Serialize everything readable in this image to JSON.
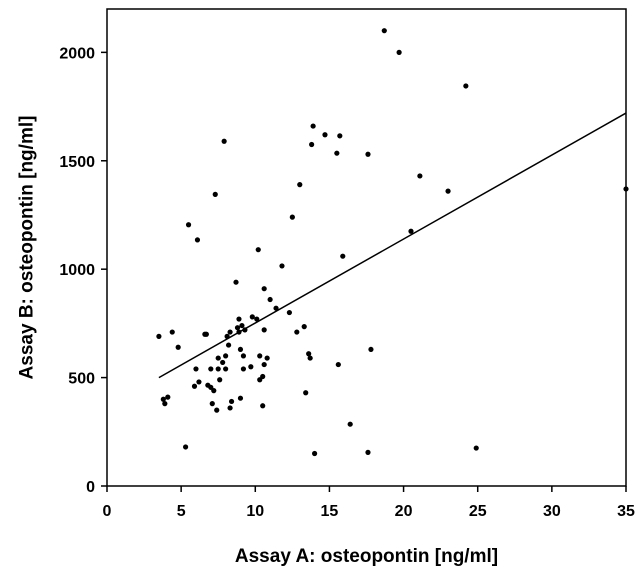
{
  "chart_data": {
    "type": "scatter",
    "title": "",
    "xlabel": "Assay A: osteopontin [ng/ml]",
    "ylabel": "Assay B: osteopontin [ng/ml]",
    "xlim": [
      0,
      35
    ],
    "ylim": [
      0,
      2200
    ],
    "xticks": [
      "0",
      "5",
      "10",
      "15",
      "20",
      "25",
      "30",
      "35"
    ],
    "yticks": [
      "0",
      "500",
      "1000",
      "1500",
      "2000"
    ],
    "grid": false,
    "legend": "none",
    "colors": {
      "points": "#000000",
      "line": "#000000",
      "axes": "#000000"
    },
    "points": [
      {
        "x": 3.5,
        "y": 690
      },
      {
        "x": 3.8,
        "y": 400
      },
      {
        "x": 3.9,
        "y": 380
      },
      {
        "x": 4.1,
        "y": 410
      },
      {
        "x": 4.4,
        "y": 710
      },
      {
        "x": 4.8,
        "y": 640
      },
      {
        "x": 5.3,
        "y": 180
      },
      {
        "x": 5.5,
        "y": 1205
      },
      {
        "x": 5.9,
        "y": 460
      },
      {
        "x": 6.0,
        "y": 540
      },
      {
        "x": 6.1,
        "y": 1135
      },
      {
        "x": 6.2,
        "y": 480
      },
      {
        "x": 6.6,
        "y": 700
      },
      {
        "x": 6.7,
        "y": 700
      },
      {
        "x": 6.8,
        "y": 465
      },
      {
        "x": 7.0,
        "y": 540
      },
      {
        "x": 7.0,
        "y": 455
      },
      {
        "x": 7.1,
        "y": 380
      },
      {
        "x": 7.2,
        "y": 440
      },
      {
        "x": 7.3,
        "y": 1345
      },
      {
        "x": 7.4,
        "y": 350
      },
      {
        "x": 7.5,
        "y": 540
      },
      {
        "x": 7.5,
        "y": 590
      },
      {
        "x": 7.6,
        "y": 490
      },
      {
        "x": 7.8,
        "y": 570
      },
      {
        "x": 7.9,
        "y": 1590
      },
      {
        "x": 8.0,
        "y": 600
      },
      {
        "x": 8.0,
        "y": 540
      },
      {
        "x": 8.1,
        "y": 690
      },
      {
        "x": 8.2,
        "y": 650
      },
      {
        "x": 8.3,
        "y": 710
      },
      {
        "x": 8.3,
        "y": 360
      },
      {
        "x": 8.4,
        "y": 390
      },
      {
        "x": 8.7,
        "y": 940
      },
      {
        "x": 8.8,
        "y": 730
      },
      {
        "x": 8.9,
        "y": 770
      },
      {
        "x": 8.9,
        "y": 710
      },
      {
        "x": 9.0,
        "y": 630
      },
      {
        "x": 9.0,
        "y": 405
      },
      {
        "x": 9.1,
        "y": 740
      },
      {
        "x": 9.2,
        "y": 600
      },
      {
        "x": 9.2,
        "y": 540
      },
      {
        "x": 9.3,
        "y": 720
      },
      {
        "x": 9.7,
        "y": 550
      },
      {
        "x": 9.8,
        "y": 780
      },
      {
        "x": 10.1,
        "y": 770
      },
      {
        "x": 10.2,
        "y": 1090
      },
      {
        "x": 10.3,
        "y": 600
      },
      {
        "x": 10.3,
        "y": 490
      },
      {
        "x": 10.5,
        "y": 505
      },
      {
        "x": 10.5,
        "y": 370
      },
      {
        "x": 10.6,
        "y": 910
      },
      {
        "x": 10.6,
        "y": 720
      },
      {
        "x": 10.6,
        "y": 560
      },
      {
        "x": 10.8,
        "y": 590
      },
      {
        "x": 11.0,
        "y": 860
      },
      {
        "x": 11.4,
        "y": 820
      },
      {
        "x": 11.8,
        "y": 1015
      },
      {
        "x": 12.3,
        "y": 800
      },
      {
        "x": 12.5,
        "y": 1240
      },
      {
        "x": 12.8,
        "y": 710
      },
      {
        "x": 13.0,
        "y": 1390
      },
      {
        "x": 13.3,
        "y": 735
      },
      {
        "x": 13.4,
        "y": 430
      },
      {
        "x": 13.6,
        "y": 610
      },
      {
        "x": 13.7,
        "y": 590
      },
      {
        "x": 13.8,
        "y": 1575
      },
      {
        "x": 13.9,
        "y": 1660
      },
      {
        "x": 14.0,
        "y": 150
      },
      {
        "x": 14.7,
        "y": 1620
      },
      {
        "x": 15.5,
        "y": 1535
      },
      {
        "x": 15.6,
        "y": 560
      },
      {
        "x": 15.7,
        "y": 1615
      },
      {
        "x": 15.9,
        "y": 1060
      },
      {
        "x": 16.4,
        "y": 285
      },
      {
        "x": 17.6,
        "y": 1530
      },
      {
        "x": 17.6,
        "y": 155
      },
      {
        "x": 17.8,
        "y": 630
      },
      {
        "x": 18.7,
        "y": 2100
      },
      {
        "x": 19.7,
        "y": 2000
      },
      {
        "x": 20.5,
        "y": 1175
      },
      {
        "x": 21.1,
        "y": 1430
      },
      {
        "x": 23.0,
        "y": 1360
      },
      {
        "x": 24.2,
        "y": 1845
      },
      {
        "x": 24.9,
        "y": 175
      },
      {
        "x": 35.0,
        "y": 1370
      }
    ],
    "fit_line": {
      "x": [
        3.5,
        35
      ],
      "y": [
        500,
        1720
      ]
    }
  }
}
